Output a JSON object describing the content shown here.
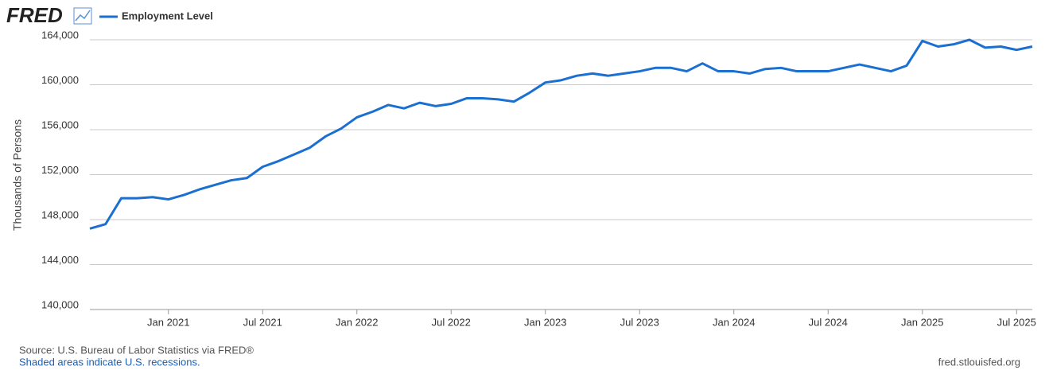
{
  "chart_data": {
    "type": "line",
    "logo": "FRED",
    "y_label": "Thousands of Persons",
    "source": "Source: U.S. Bureau of Labor Statistics via FRED®",
    "note": "Shaded areas indicate U.S. recessions.",
    "url": "fred.stlouisfed.org",
    "x": [
      "2020-08",
      "2020-09",
      "2020-10",
      "2020-11",
      "2020-12",
      "2021-01",
      "2021-02",
      "2021-03",
      "2021-04",
      "2021-05",
      "2021-06",
      "2021-07",
      "2021-08",
      "2021-09",
      "2021-10",
      "2021-11",
      "2021-12",
      "2022-01",
      "2022-02",
      "2022-03",
      "2022-04",
      "2022-05",
      "2022-06",
      "2022-07",
      "2022-08",
      "2022-09",
      "2022-10",
      "2022-11",
      "2022-12",
      "2023-01",
      "2023-02",
      "2023-03",
      "2023-04",
      "2023-05",
      "2023-06",
      "2023-07",
      "2023-08",
      "2023-09",
      "2023-10",
      "2023-11",
      "2023-12",
      "2024-01",
      "2024-02",
      "2024-03",
      "2024-04",
      "2024-05",
      "2024-06",
      "2024-07",
      "2024-08",
      "2024-09",
      "2024-10",
      "2024-11",
      "2024-12",
      "2025-01",
      "2025-02",
      "2025-03",
      "2025-04",
      "2025-05",
      "2025-06",
      "2025-07",
      "2025-08"
    ],
    "series": [
      {
        "name": "Employment Level",
        "color": "#1a6fd1",
        "values": [
          147200,
          147600,
          149900,
          149900,
          150000,
          149800,
          150200,
          150700,
          151100,
          151500,
          151700,
          152700,
          153200,
          153800,
          154400,
          155400,
          156100,
          157100,
          157600,
          158200,
          157900,
          158400,
          158100,
          158300,
          158800,
          158800,
          158700,
          158500,
          159300,
          160200,
          160400,
          160800,
          161000,
          160800,
          161000,
          161200,
          161500,
          161500,
          161200,
          161900,
          161200,
          161200,
          161000,
          161400,
          161500,
          161200,
          161200,
          161200,
          161500,
          161800,
          161500,
          161200,
          161700,
          163900,
          163400,
          163600,
          164000,
          163300,
          163400,
          163100,
          163400
        ]
      }
    ],
    "xlim": [
      "2020-08",
      "2025-08"
    ],
    "xticks": [
      {
        "value": "2021-01",
        "label": "Jan 2021"
      },
      {
        "value": "2021-07",
        "label": "Jul 2021"
      },
      {
        "value": "2022-01",
        "label": "Jan 2022"
      },
      {
        "value": "2022-07",
        "label": "Jul 2022"
      },
      {
        "value": "2023-01",
        "label": "Jan 2023"
      },
      {
        "value": "2023-07",
        "label": "Jul 2023"
      },
      {
        "value": "2024-01",
        "label": "Jan 2024"
      },
      {
        "value": "2024-07",
        "label": "Jul 2024"
      },
      {
        "value": "2025-01",
        "label": "Jan 2025"
      },
      {
        "value": "2025-07",
        "label": "Jul 2025"
      }
    ],
    "ylim": [
      140000,
      164000
    ],
    "yticks": [
      {
        "value": 140000,
        "label": "140,000"
      },
      {
        "value": 144000,
        "label": "144,000"
      },
      {
        "value": 148000,
        "label": "148,000"
      },
      {
        "value": 152000,
        "label": "152,000"
      },
      {
        "value": 156000,
        "label": "156,000"
      },
      {
        "value": 160000,
        "label": "160,000"
      },
      {
        "value": 164000,
        "label": "164,000"
      }
    ],
    "grid": true
  }
}
